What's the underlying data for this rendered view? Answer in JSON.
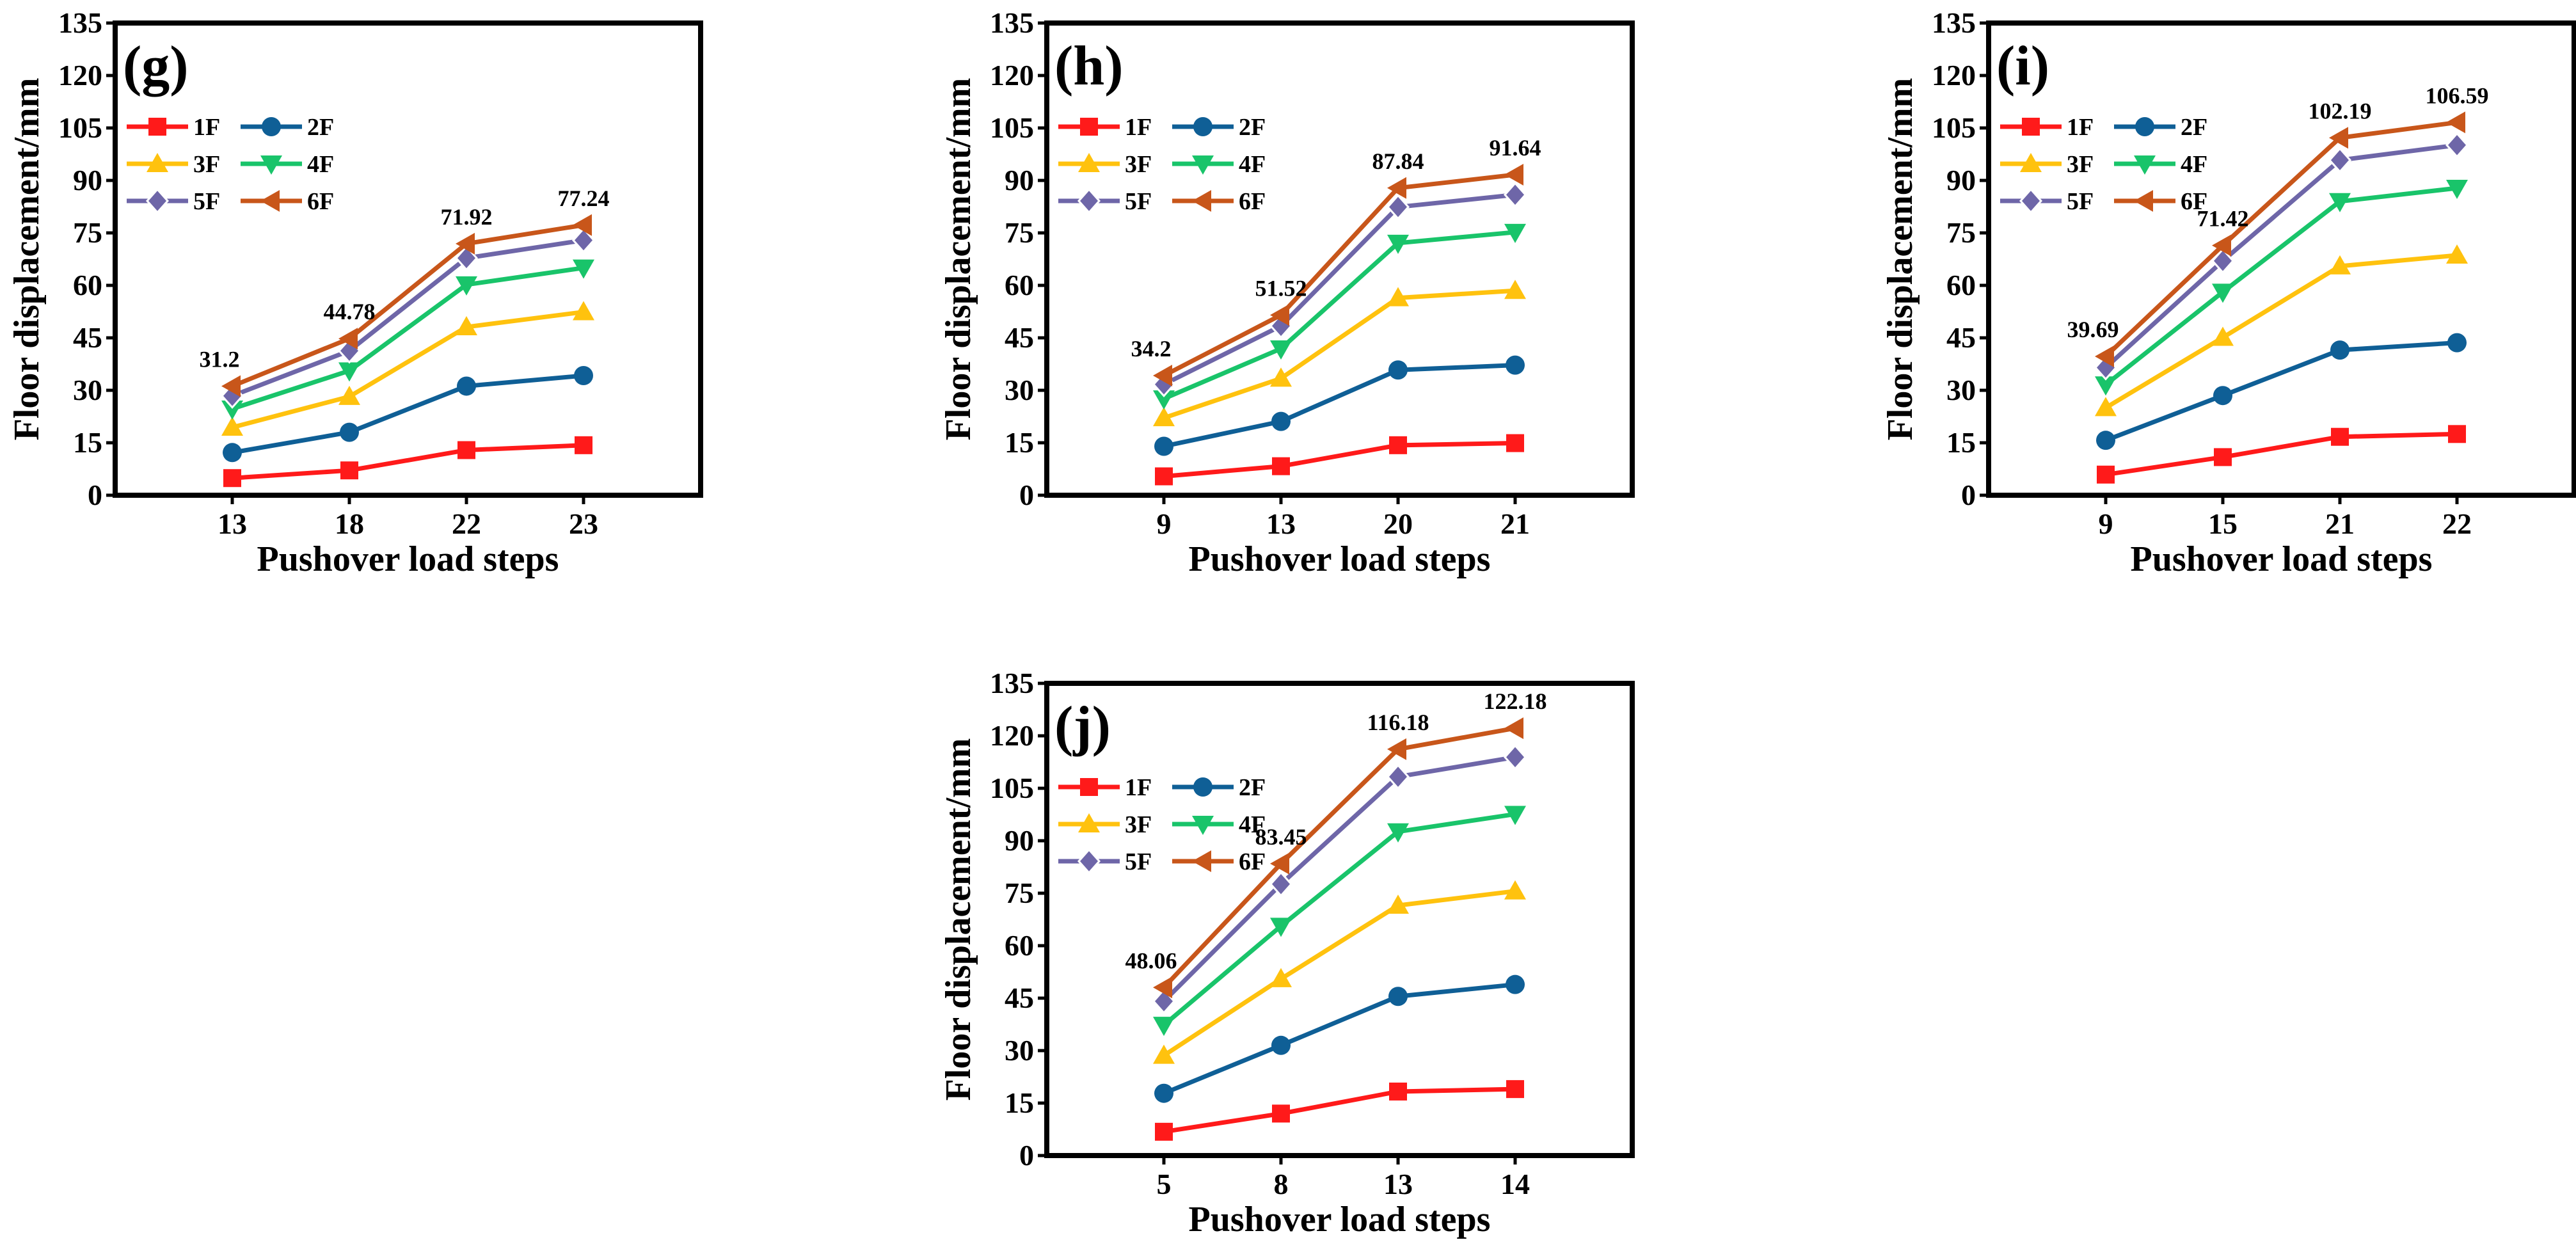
{
  "chart_data": [
    {
      "type": "line",
      "label": "(g)",
      "categories": [
        "13",
        "18",
        "22",
        "23"
      ],
      "xlabel": "Pushover load steps",
      "ylabel": "Floor displacement/mm",
      "ylim": [
        0,
        135
      ],
      "yticks": [
        "0",
        "15",
        "30",
        "45",
        "60",
        "75",
        "90",
        "105",
        "120",
        "135"
      ],
      "legend": "top-left",
      "series": [
        {
          "name": "1F",
          "values": [
            4.9,
            7.1,
            12.9,
            14.3
          ]
        },
        {
          "name": "2F",
          "values": [
            12.2,
            18.0,
            31.2,
            34.2
          ]
        },
        {
          "name": "3F",
          "values": [
            19.4,
            28.2,
            48.1,
            52.4
          ]
        },
        {
          "name": "4F",
          "values": [
            24.7,
            35.6,
            60.2,
            65.0
          ]
        },
        {
          "name": "5F",
          "values": [
            28.4,
            41.3,
            67.8,
            72.9
          ]
        },
        {
          "name": "6F",
          "values": [
            31.2,
            44.78,
            71.92,
            77.24
          ]
        }
      ],
      "annotations": [
        "31.2",
        "44.78",
        "71.92",
        "77.24"
      ]
    },
    {
      "type": "line",
      "label": "(h)",
      "categories": [
        "9",
        "13",
        "20",
        "21"
      ],
      "xlabel": "Pushover load steps",
      "ylabel": "Floor displacement/mm",
      "ylim": [
        0,
        135
      ],
      "yticks": [
        "0",
        "15",
        "30",
        "45",
        "60",
        "75",
        "90",
        "105",
        "120",
        "135"
      ],
      "legend": "top-left",
      "series": [
        {
          "name": "1F",
          "values": [
            5.4,
            8.3,
            14.3,
            14.9
          ]
        },
        {
          "name": "2F",
          "values": [
            14.0,
            21.1,
            35.8,
            37.2
          ]
        },
        {
          "name": "3F",
          "values": [
            22.1,
            33.4,
            56.4,
            58.5
          ]
        },
        {
          "name": "4F",
          "values": [
            27.6,
            41.9,
            72.1,
            75.2
          ]
        },
        {
          "name": "5F",
          "values": [
            31.7,
            48.4,
            82.4,
            85.9
          ]
        },
        {
          "name": "6F",
          "values": [
            34.2,
            51.52,
            87.84,
            91.64
          ]
        }
      ],
      "annotations": [
        "34.2",
        "51.52",
        "87.84",
        "91.64"
      ]
    },
    {
      "type": "line",
      "label": "(i)",
      "categories": [
        "9",
        "15",
        "21",
        "22"
      ],
      "xlabel": "Pushover load steps",
      "ylabel": "Floor displacement/mm",
      "ylim": [
        0,
        135
      ],
      "yticks": [
        "0",
        "15",
        "30",
        "45",
        "60",
        "75",
        "90",
        "105",
        "120",
        "135"
      ],
      "legend": "top-left",
      "series": [
        {
          "name": "1F",
          "values": [
            5.9,
            10.9,
            16.7,
            17.5
          ]
        },
        {
          "name": "2F",
          "values": [
            15.7,
            28.5,
            41.5,
            43.6
          ]
        },
        {
          "name": "3F",
          "values": [
            25.0,
            45.1,
            65.5,
            68.6
          ]
        },
        {
          "name": "4F",
          "values": [
            31.6,
            58.1,
            84.0,
            87.8
          ]
        },
        {
          "name": "5F",
          "values": [
            36.5,
            67.0,
            95.8,
            100.1
          ]
        },
        {
          "name": "6F",
          "values": [
            39.69,
            71.42,
            102.19,
            106.59
          ]
        }
      ],
      "annotations": [
        "39.69",
        "71.42",
        "102.19",
        "106.59"
      ]
    },
    {
      "type": "line",
      "label": "(j)",
      "categories": [
        "5",
        "8",
        "13",
        "14"
      ],
      "xlabel": "Pushover load steps",
      "ylabel": "Floor displacement/mm",
      "ylim": [
        0,
        135
      ],
      "yticks": [
        "0",
        "15",
        "30",
        "45",
        "60",
        "75",
        "90",
        "105",
        "120",
        "135"
      ],
      "legend": "top-left",
      "series": [
        {
          "name": "1F",
          "values": [
            6.8,
            12.0,
            18.3,
            19.0
          ]
        },
        {
          "name": "2F",
          "values": [
            17.8,
            31.5,
            45.5,
            48.9
          ]
        },
        {
          "name": "3F",
          "values": [
            28.6,
            50.5,
            71.5,
            75.6
          ]
        },
        {
          "name": "4F",
          "values": [
            37.3,
            65.6,
            92.6,
            97.6
          ]
        },
        {
          "name": "5F",
          "values": [
            44.1,
            77.6,
            108.3,
            113.9
          ]
        },
        {
          "name": "6F",
          "values": [
            48.06,
            83.45,
            116.18,
            122.18
          ]
        }
      ],
      "annotations": [
        "48.06",
        "83.45",
        "116.18",
        "122.18"
      ]
    }
  ],
  "series_style": [
    {
      "name": "1F",
      "color": "#ff1a1a",
      "marker": "square"
    },
    {
      "name": "2F",
      "color": "#0f5f96",
      "marker": "circle"
    },
    {
      "name": "3F",
      "color": "#ffc20e",
      "marker": "triangle-up"
    },
    {
      "name": "4F",
      "color": "#19c46a",
      "marker": "triangle-down"
    },
    {
      "name": "5F",
      "color": "#6e66a8",
      "marker": "diamond"
    },
    {
      "name": "6F",
      "color": "#c8561a",
      "marker": "triangle-left"
    }
  ]
}
